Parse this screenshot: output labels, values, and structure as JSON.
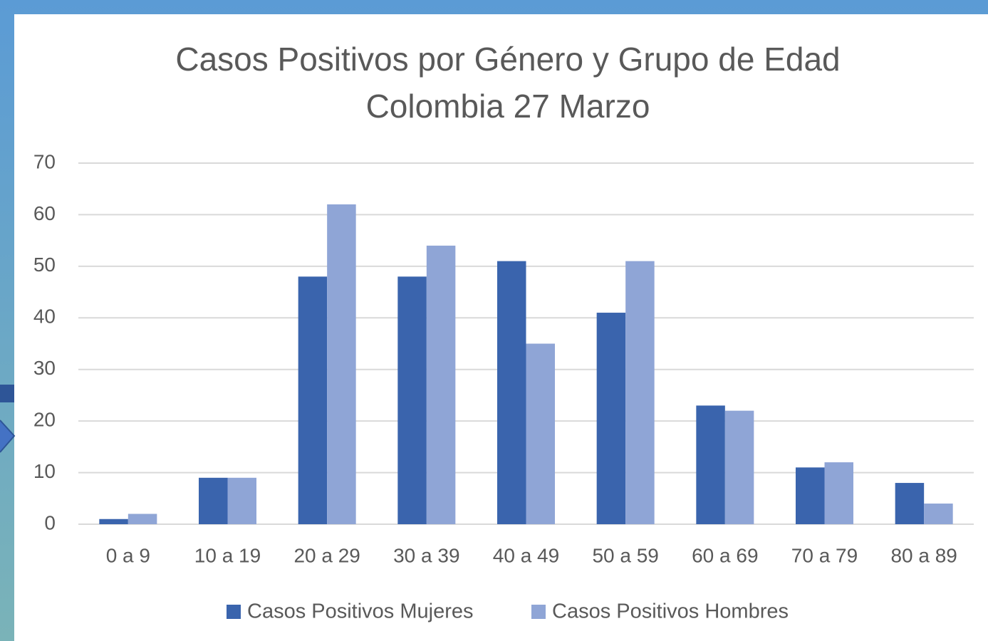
{
  "chart_data": {
    "type": "bar",
    "title": "Casos Positivos por Género y Grupo de Edad",
    "subtitle": "Colombia 27 Marzo",
    "categories": [
      "0 a 9",
      "10 a 19",
      "20 a 29",
      "30 a 39",
      "40 a 49",
      "50 a 59",
      "60 a 69",
      "70 a 79",
      "80 a 89"
    ],
    "series": [
      {
        "name": "Casos Positivos Mujeres",
        "color": "#3a64ad",
        "values": [
          1,
          9,
          48,
          48,
          51,
          41,
          23,
          11,
          8
        ]
      },
      {
        "name": "Casos Positivos Hombres",
        "color": "#8fa5d6",
        "values": [
          2,
          9,
          62,
          54,
          35,
          51,
          22,
          12,
          4
        ]
      }
    ],
    "ylim": [
      0,
      70
    ],
    "yticks": [
      0,
      10,
      20,
      30,
      40,
      50,
      60,
      70
    ],
    "grid": true,
    "legend": "bottom"
  }
}
